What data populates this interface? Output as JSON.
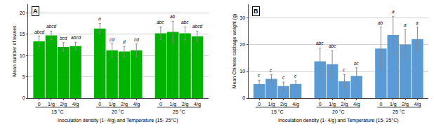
{
  "chart_data": [
    {
      "type": "bar",
      "title": "A",
      "ylabel": "Mean number of leaves",
      "xlabel": "Inoculation density (1- 4/g) and Temperature (15- 25°C)",
      "categories": [
        "0",
        "1/g",
        "2/g",
        "4/g",
        "0",
        "1/g",
        "2/g",
        "4/g",
        "0",
        "1/g",
        "2/g",
        "4/g"
      ],
      "groups": [
        "15 °C",
        "20 °C",
        "25 °C"
      ],
      "values": [
        13.3,
        14.7,
        12.0,
        12.2,
        16.3,
        11.2,
        10.9,
        11.2,
        15.2,
        15.5,
        15.2,
        14.5
      ],
      "errors": [
        1.2,
        1.0,
        1.0,
        0.9,
        1.2,
        1.5,
        1.2,
        1.5,
        1.5,
        2.5,
        1.5,
        1.2
      ],
      "annotations": [
        "abcd",
        "abcd",
        "bcd",
        "abcd",
        "a",
        "cd",
        "d",
        "cd",
        "abc",
        "ab",
        "abc",
        "abcd"
      ],
      "color": "#00b300",
      "ylim": [
        0,
        22
      ],
      "yticks": [
        0,
        5,
        10,
        15,
        20
      ],
      "grid": true
    },
    {
      "type": "bar",
      "title": "B",
      "ylabel": "Mean Chinese cabbage weight (g)",
      "xlabel": "Inoculation density (1- 4/g) and Temperature (15- 25°C)",
      "categories": [
        "0",
        "1/g",
        "2/g",
        "4/g",
        "0",
        "1/g",
        "2/g",
        "4/g",
        "0",
        "1/g",
        "2/g",
        "4/g"
      ],
      "groups": [
        "15 °C",
        "20 °C",
        "25 °C"
      ],
      "values": [
        5.2,
        7.2,
        4.5,
        5.3,
        13.7,
        12.7,
        6.3,
        8.3,
        18.5,
        23.5,
        20.0,
        22.0
      ],
      "errors": [
        1.5,
        1.5,
        1.5,
        1.2,
        5.0,
        5.0,
        2.5,
        3.0,
        8.0,
        7.0,
        5.5,
        4.5
      ],
      "annotations": [
        "c",
        "c",
        "c",
        "c",
        "abc",
        "abc",
        "c",
        "bc",
        "ab",
        "a",
        "a",
        "a"
      ],
      "color": "#5b9bd5",
      "ylim": [
        0,
        35
      ],
      "yticks": [
        0,
        10,
        20,
        30
      ],
      "grid": true
    }
  ]
}
